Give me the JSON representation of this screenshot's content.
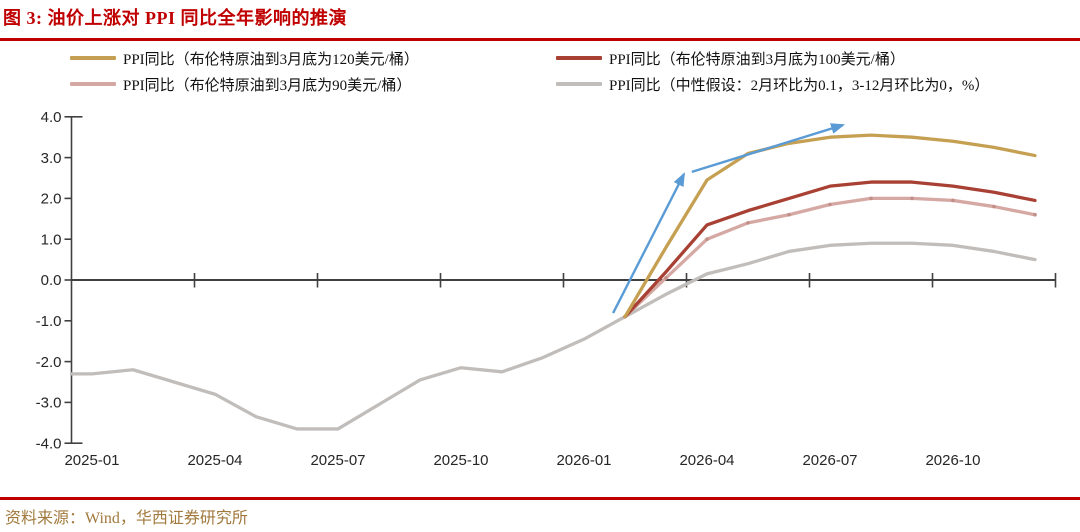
{
  "header": {
    "title": "图 3: 油价上涨对 PPI 同比全年影响的推演"
  },
  "source": {
    "text": "资料来源：Wind，华西证券研究所"
  },
  "colors": {
    "title_red": "#c00000",
    "rule_red": "#c00000",
    "axis": "#404040",
    "axis_text": "#262626",
    "source_text": "#a1793c"
  },
  "legend": {
    "items": [
      {
        "label": "PPI同比（布伦特原油到3月底为120美元/桶）",
        "color": "#c6a052"
      },
      {
        "label": "PPI同比（布伦特原油到3月底为100美元/桶）",
        "color": "#a84034"
      },
      {
        "label": "PPI同比（布伦特原油到3月底为90美元/桶）",
        "color": "#d6a8a3"
      },
      {
        "label": "PPI同比（中性假设：2月环比为0.1，3-12月环比为0，%）",
        "color": "#c1bdba"
      }
    ]
  },
  "chart_data": {
    "type": "line",
    "title": "油价上涨对PPI同比全年影响的推演",
    "xlabel": "",
    "ylabel": "",
    "ylim": [
      -4.0,
      4.0
    ],
    "grid": false,
    "legend_position": "top",
    "categories": [
      "2025-01",
      "2025-02",
      "2025-03",
      "2025-04",
      "2025-05",
      "2025-06",
      "2025-07",
      "2025-08",
      "2025-09",
      "2025-10",
      "2025-11",
      "2025-12",
      "2026-01",
      "2026-02",
      "2026-03",
      "2026-04",
      "2026-05",
      "2026-06",
      "2026-07",
      "2026-08",
      "2026-09",
      "2026-10",
      "2026-11",
      "2026-12"
    ],
    "x_tick_labels": [
      "2025-01",
      "2025-04",
      "2025-07",
      "2025-10",
      "2026-01",
      "2026-04",
      "2026-07",
      "2026-10"
    ],
    "y_tick_labels": [
      "4.0",
      "3.0",
      "2.0",
      "1.0",
      "0.0",
      "-1.0",
      "-2.0",
      "-3.0",
      "-4.0"
    ],
    "series": [
      {
        "name": "PPI同比（中性假设：2月环比为0.1，3-12月环比为0，%）",
        "color": "#c1bdba",
        "start_index": 0,
        "axis_lead": true,
        "markers": false,
        "values": [
          -2.3,
          -2.2,
          -2.5,
          -2.8,
          -3.35,
          -3.65,
          -3.65,
          -3.05,
          -2.45,
          -2.15,
          -2.25,
          -1.9,
          -1.45,
          -0.9,
          -0.35,
          0.15,
          0.4,
          0.7,
          0.85,
          0.9,
          0.9,
          0.85,
          0.7,
          0.5
        ]
      },
      {
        "name": "PPI同比（布伦特原油到3月底为90美元/桶）",
        "color": "#d6a8a3",
        "start_index": 13,
        "axis_lead": false,
        "markers": true,
        "values": [
          -0.9,
          0.05,
          1.0,
          1.4,
          1.6,
          1.85,
          2.0,
          2.0,
          1.95,
          1.8,
          1.6
        ]
      },
      {
        "name": "PPI同比（布伦特原油到3月底为100美元/桶）",
        "color": "#a84034",
        "start_index": 13,
        "axis_lead": false,
        "markers": false,
        "values": [
          -0.9,
          0.2,
          1.35,
          1.7,
          2.0,
          2.3,
          2.4,
          2.4,
          2.3,
          2.15,
          1.95
        ]
      },
      {
        "name": "PPI同比（布伦特原油到3月底为120美元/桶）",
        "color": "#c6a052",
        "start_index": 13,
        "axis_lead": false,
        "markers": false,
        "values": [
          -0.9,
          0.8,
          2.45,
          3.1,
          3.35,
          3.5,
          3.55,
          3.5,
          3.4,
          3.25,
          3.05
        ]
      }
    ],
    "annotations": {
      "arrow_color": "#5b9bd5",
      "arrows": [
        {
          "from": [
            12.71,
            -0.81
          ],
          "to": [
            14.44,
            2.6
          ]
        },
        {
          "from": [
            14.63,
            2.65
          ],
          "to": [
            18.32,
            3.8
          ]
        }
      ]
    }
  }
}
